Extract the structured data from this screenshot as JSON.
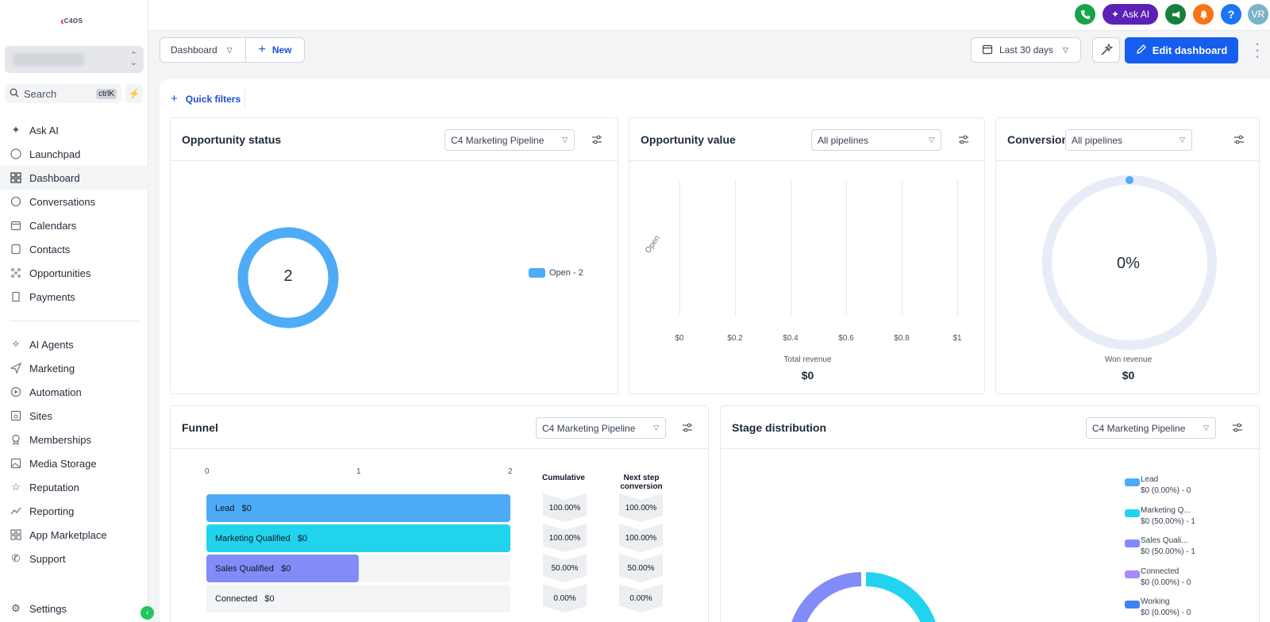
{
  "logo": {
    "text": "C4OS"
  },
  "sidebar": {
    "search_label": "Search",
    "search_kbd": "ctrlK",
    "items": [
      {
        "label": "Ask AI",
        "icon": "sparkle-icon"
      },
      {
        "label": "Launchpad",
        "icon": "rocket-icon"
      },
      {
        "label": "Dashboard",
        "icon": "grid-icon"
      },
      {
        "label": "Conversations",
        "icon": "chat-icon"
      },
      {
        "label": "Calendars",
        "icon": "calendar-icon"
      },
      {
        "label": "Contacts",
        "icon": "contact-icon"
      },
      {
        "label": "Opportunities",
        "icon": "opportunities-icon"
      },
      {
        "label": "Payments",
        "icon": "receipt-icon"
      },
      {
        "label": "AI Agents",
        "icon": "ai-agent-icon"
      },
      {
        "label": "Marketing",
        "icon": "send-icon"
      },
      {
        "label": "Automation",
        "icon": "automation-icon"
      },
      {
        "label": "Sites",
        "icon": "sites-icon"
      },
      {
        "label": "Memberships",
        "icon": "membership-icon"
      },
      {
        "label": "Media Storage",
        "icon": "image-icon"
      },
      {
        "label": "Reputation",
        "icon": "star-icon"
      },
      {
        "label": "Reporting",
        "icon": "trend-icon"
      },
      {
        "label": "App Marketplace",
        "icon": "apps-icon"
      },
      {
        "label": "Support",
        "icon": "phone-icon"
      },
      {
        "label": "Settings",
        "icon": "gear-icon"
      }
    ]
  },
  "topbar": {
    "ask_ai": "Ask AI",
    "help": "?",
    "avatar": "VR",
    "colors": {
      "phone": "#16a34a",
      "ask_ai": "#5b21b6",
      "announce": "#15803d",
      "bell": "#f97316",
      "help": "#1d74f5",
      "avatar": "#7bb3c9"
    }
  },
  "header": {
    "dashboard_select": "Dashboard",
    "new_label": "New",
    "date_range": "Last 30 days",
    "edit_label": "Edit dashboard"
  },
  "quick_filters": "Quick filters",
  "cards": {
    "opp_status": {
      "title": "Opportunity status",
      "select": "C4 Marketing Pipeline",
      "center_value": "2",
      "legend": "Open - 2",
      "color": "#4dabf7"
    },
    "opp_value": {
      "title": "Opportunity value",
      "select": "All pipelines",
      "category": "Open",
      "ticks": [
        "$0",
        "$0.2",
        "$0.4",
        "$0.6",
        "$0.8",
        "$1"
      ],
      "footer_label": "Total revenue",
      "footer_value": "$0"
    },
    "conversion": {
      "title": "Conversion rate",
      "select": "All pipelines",
      "center_value": "0%",
      "footer_label": "Won revenue",
      "footer_value": "$0"
    },
    "funnel": {
      "title": "Funnel",
      "select": "C4 Marketing Pipeline",
      "axis": [
        "0",
        "1",
        "2"
      ],
      "col_cumulative": "Cumulative",
      "col_next": "Next step conversion",
      "stages": [
        {
          "label": "Lead",
          "amount": "$0",
          "count": 2,
          "color": "#4dabf7",
          "cumulative": "100.00%",
          "next": "100.00%"
        },
        {
          "label": "Marketing Qualified",
          "amount": "$0",
          "count": 2,
          "color": "#22d3ee",
          "cumulative": "100.00%",
          "next": "100.00%"
        },
        {
          "label": "Sales Qualified",
          "amount": "$0",
          "count": 1,
          "color": "#818cf8",
          "cumulative": "50.00%",
          "next": "50.00%"
        },
        {
          "label": "Connected",
          "amount": "$0",
          "count": 0,
          "color": "#a78bfa",
          "cumulative": "0.00%",
          "next": "0.00%"
        }
      ]
    },
    "stage_dist": {
      "title": "Stage distribution",
      "select": "C4 Marketing Pipeline",
      "legend": [
        {
          "name": "Lead",
          "detail": "$0 (0.00%) - 0",
          "color": "#4dabf7"
        },
        {
          "name": "Marketing Q...",
          "detail": "$0 (50.00%) - 1",
          "color": "#22d3ee"
        },
        {
          "name": "Sales Quali...",
          "detail": "$0 (50.00%) - 1",
          "color": "#818cf8"
        },
        {
          "name": "Connected",
          "detail": "$0 (0.00%) - 0",
          "color": "#a78bfa"
        },
        {
          "name": "Working",
          "detail": "$0 (0.00%) - 0",
          "color": "#3b82f6"
        }
      ]
    }
  }
}
